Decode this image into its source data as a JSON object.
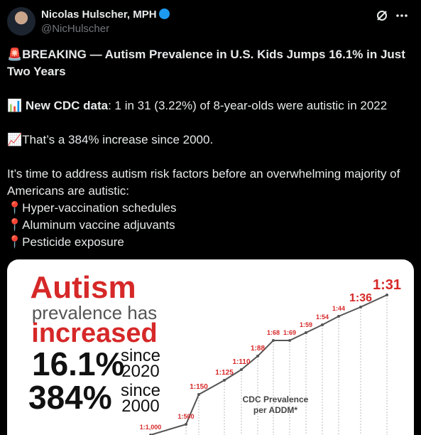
{
  "author": {
    "name": "Nicolas Hulscher, MPH",
    "handle": "@NicHulscher"
  },
  "tweet": {
    "headline": {
      "icon": "🚨",
      "text": "BREAKING — Autism Prevalence in U.S. Kids Jumps 16.1% in Just Two Years"
    },
    "cdc": {
      "icon": "📊",
      "label": "New CDC data",
      "text": ": 1 in 31 (3.22%) of 8-year-olds were autistic in 2022"
    },
    "increase": {
      "icon": "📈",
      "text": "That’s a 384% increase since 2000."
    },
    "call": "It’s time to address autism risk factors before an overwhelming majority of Americans are autistic:",
    "list": {
      "icon": "📍",
      "items": [
        "Hyper-vaccination schedules",
        "Aluminum vaccine adjuvants",
        "Pesticide exposure"
      ]
    }
  },
  "image": {
    "title": [
      "Autism",
      "prevalence has",
      "increased"
    ],
    "stats": [
      {
        "value": "16.1%",
        "since": "since",
        "year": "2020"
      },
      {
        "value": "384%",
        "since": "since",
        "year": "2000"
      }
    ],
    "chart_label": [
      "CDC Prevalence",
      "per ADDM*"
    ],
    "points": [
      "1:1,000",
      "1:500",
      "1:150",
      "1:125",
      "1:110",
      "1:88",
      "1:68",
      "1:69",
      "1:59",
      "1:54",
      "1:44",
      "1:36",
      "1:31"
    ]
  }
}
